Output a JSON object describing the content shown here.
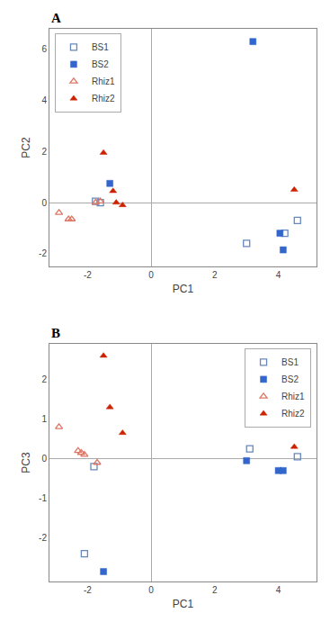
{
  "chart_data": [
    {
      "type": "scatter",
      "title": "A",
      "xlabel": "PC1",
      "ylabel": "PC2",
      "xlim": [
        -3.2,
        5.2
      ],
      "ylim": [
        -2.5,
        6.8
      ],
      "xticks": [
        -2,
        0,
        2,
        4
      ],
      "yticks": [
        -2,
        0,
        2,
        4,
        6
      ],
      "grid": false,
      "legend": "upper left",
      "series": [
        {
          "name": "BS1",
          "color": "#6688bb",
          "marker": "square-open",
          "x": [
            -1.75,
            -1.6,
            3.0,
            4.2,
            4.6
          ],
          "values": [
            0.05,
            0.0,
            -1.6,
            -1.2,
            -0.7
          ]
        },
        {
          "name": "BS2",
          "color": "#3366cc",
          "marker": "square",
          "x": [
            -1.3,
            3.2,
            4.05,
            4.15
          ],
          "values": [
            0.75,
            6.3,
            -1.2,
            -1.85
          ]
        },
        {
          "name": "Rhiz1",
          "color": "#dd7766",
          "marker": "triangle-up-open",
          "x": [
            -2.9,
            -2.6,
            -2.5,
            -1.75,
            -1.6
          ],
          "values": [
            -0.4,
            -0.65,
            -0.65,
            0.0,
            0.05
          ]
        },
        {
          "name": "Rhiz2",
          "color": "#cc2200",
          "marker": "triangle-up",
          "x": [
            -1.5,
            -1.2,
            -1.1,
            -0.9,
            4.5
          ],
          "values": [
            1.95,
            0.45,
            0.0,
            -0.1,
            0.5
          ]
        }
      ]
    },
    {
      "type": "scatter",
      "title": "B",
      "xlabel": "PC1",
      "ylabel": "PC3",
      "xlim": [
        -3.2,
        5.2
      ],
      "ylim": [
        -3.1,
        2.9
      ],
      "xticks": [
        -2,
        0,
        2,
        4
      ],
      "yticks": [
        -2,
        -1,
        0,
        1,
        2
      ],
      "grid": false,
      "legend": "upper right",
      "series": [
        {
          "name": "BS1",
          "color": "#6688bb",
          "marker": "square-open",
          "x": [
            -2.1,
            -1.8,
            3.1,
            4.6
          ],
          "values": [
            -2.4,
            -0.2,
            0.25,
            0.05
          ]
        },
        {
          "name": "BS2",
          "color": "#3366cc",
          "marker": "square",
          "x": [
            -1.5,
            3.0,
            4.0,
            4.15
          ],
          "values": [
            -2.85,
            -0.05,
            -0.3,
            -0.3
          ]
        },
        {
          "name": "Rhiz1",
          "color": "#dd7766",
          "marker": "triangle-up-open",
          "x": [
            -2.9,
            -2.3,
            -2.2,
            -2.1,
            -1.7
          ],
          "values": [
            0.8,
            0.2,
            0.15,
            0.1,
            -0.1
          ]
        },
        {
          "name": "Rhiz2",
          "color": "#cc2200",
          "marker": "triangle-up",
          "x": [
            -1.5,
            -1.3,
            -0.9,
            4.5
          ],
          "values": [
            2.6,
            1.3,
            0.65,
            0.3
          ]
        }
      ]
    }
  ]
}
